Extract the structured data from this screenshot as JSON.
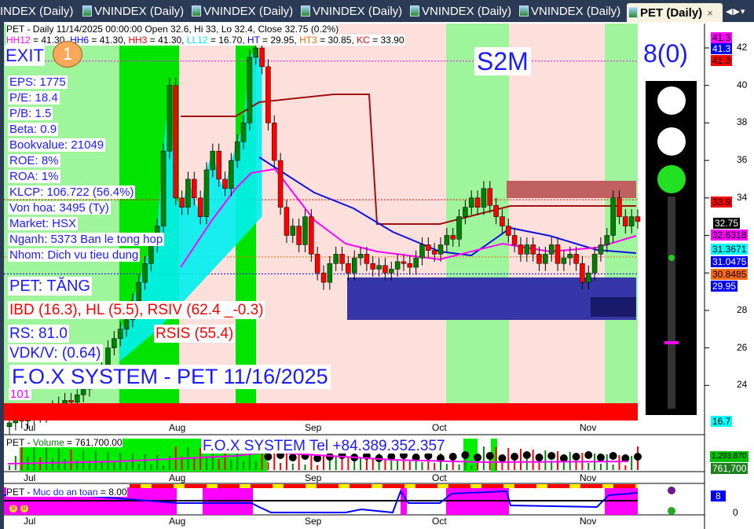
{
  "tabs": [
    {
      "label": "INDEX (Daily)",
      "partial": true
    },
    {
      "label": "VNINDEX (Daily)"
    },
    {
      "label": "VNINDEX (Daily)"
    },
    {
      "label": "VNINDEX (Daily)"
    },
    {
      "label": "VNINDEX (Daily)"
    },
    {
      "label": "VNINDEX (Daily)"
    },
    {
      "label": "PET (Daily)",
      "active": true
    }
  ],
  "tab_close": "×",
  "tab_nav": "◀▶▾",
  "header": {
    "title_line": "PET - Daily 11/14/2025 00:00:00 Open 32.6, Hi 33, Lo 32.4, Close 32.75 (0.2%)",
    "levels": [
      {
        "k": "HH12",
        "v": " = 41.30, ",
        "c": "#ff00ff"
      },
      {
        "k": "HH6",
        "v": " = 41.30, ",
        "c": "#0000ff"
      },
      {
        "k": "HH3",
        "v": " = 41.30, ",
        "c": "#ff0000"
      },
      {
        "k": "LL12",
        "v": " = 16.70, ",
        "c": "#00e5ff"
      },
      {
        "k": "HT",
        "v": "  = 29.95, ",
        "c": "#0000ff"
      },
      {
        "k": "HT3",
        "v": "  = 30.85, ",
        "c": "#ff6a00"
      },
      {
        "k": "KC",
        "v": " = 33.90",
        "c": "#ff0000"
      }
    ]
  },
  "signal": {
    "exit": "EXIT",
    "exit_count": "1",
    "s2m": "S2M",
    "score": "8(0)",
    "pet_trend": "PET: TĂNG",
    "low_label": "101"
  },
  "fundamentals": [
    "EPS: 1775",
    "P/E: 18.4",
    "P/B: 1.5",
    "Beta: 0.9",
    "Bookvalue: 21049",
    "ROE: 8%",
    "ROA: 1%",
    "KLCP: 106.722 (56.4%)",
    "Von hoa: 3495 (Ty)",
    "Market: HSX",
    "Nganh: 5373 Ban le tong hop",
    "Nhom: Dich vu tieu dung"
  ],
  "indicators": {
    "ibd": "IBD (16.3), HL (5.5), RSIV (62.4 _-0.3)",
    "rs": "RS: 81.0",
    "rsis": "RSIS (55.4)",
    "vdk": "VDK/V:  (0.64)"
  },
  "watermark": "F.O.X SYSTEM - PET 11/16/2025",
  "price_axis": {
    "ticks": [
      "42",
      "40",
      "38",
      "36",
      "34",
      "28",
      "26",
      "24"
    ],
    "tags": [
      {
        "v": "41.3",
        "bg": "#ff00ff",
        "fg": "#000"
      },
      {
        "v": "41.3",
        "bg": "#0000ff",
        "fg": "#fff"
      },
      {
        "v": "41.3",
        "bg": "#ff0000",
        "fg": "#000"
      },
      {
        "v": "33.9",
        "bg": "#ff0000",
        "fg": "#000"
      },
      {
        "v": "32.75",
        "bg": "#000",
        "fg": "#fff"
      },
      {
        "v": "32.6318",
        "bg": "#ff00ff",
        "fg": "#000"
      },
      {
        "v": "31.3671",
        "bg": "#00ffff",
        "fg": "#000"
      },
      {
        "v": "31.0475",
        "bg": "#0000ff",
        "fg": "#fff"
      },
      {
        "v": "30.8485",
        "bg": "#ff6a1a",
        "fg": "#000"
      },
      {
        "v": "29.95",
        "bg": "#0000ff",
        "fg": "#fff"
      },
      {
        "v": "16.7",
        "bg": "#00ffff",
        "fg": "#000"
      }
    ]
  },
  "months": [
    "Jul",
    "Aug",
    "Sep",
    "Oct",
    "Nov"
  ],
  "volume_panel": {
    "label_prefix": "PET - ",
    "label": "Volume",
    "value": " = 761,700.00",
    "contact": "F.O.X SYSTEM Tel +84.389.352.357",
    "tags": [
      {
        "v": "1,293,870",
        "bg": "#00c000"
      },
      {
        "v": "761,700",
        "bg": "#208020"
      }
    ]
  },
  "safety_panel": {
    "label_prefix": "PET - ",
    "label": "Muc do an toan",
    "value": " = 8.00",
    "tag": "8",
    "axis_zero": "0",
    "markers": [
      "8",
      "8"
    ]
  },
  "chart_data": {
    "type": "candlestick",
    "symbol": "PET",
    "interval": "Daily",
    "ylim": [
      16.7,
      43
    ],
    "closes": {
      "late_jun_jul": [
        22,
        22.2,
        22.1,
        22.3,
        22.5,
        22.4,
        22.6,
        22.8,
        23,
        23.2,
        23.1,
        23.5,
        23.8,
        24.2,
        24.5,
        25,
        26,
        26.5,
        27,
        27.5,
        28.5,
        29.5,
        30.5,
        31.5,
        32.5,
        36.5,
        40
      ],
      "aug": [
        34,
        33.5,
        35,
        34,
        33,
        35.5,
        36.5,
        35,
        34.5,
        36,
        37,
        38,
        41.5,
        42,
        41,
        38,
        36,
        33.5,
        32,
        32.5,
        31.5,
        33
      ],
      "sep": [
        31,
        30,
        29.5,
        30.5,
        31,
        30.5,
        30,
        30.8,
        31,
        30.5,
        30.2,
        30.4,
        30,
        30.2,
        30.6,
        30.5,
        30.3,
        30.8,
        31.5,
        31.2,
        31
      ],
      "oct": [
        31.5,
        32,
        31.8,
        33,
        33.5,
        34,
        33.5,
        34.5,
        33.6,
        33,
        32.5,
        32,
        31.5,
        31,
        31.5,
        31,
        30.5,
        31,
        31.5,
        30.5,
        30.8,
        31,
        30.5
      ],
      "nov": [
        29.5,
        30,
        31,
        31.5,
        32,
        34,
        33,
        32.5,
        33,
        32.75
      ]
    },
    "last": {
      "open": 32.6,
      "high": 33,
      "low": 32.4,
      "close": 32.75
    },
    "levels": {
      "HH12": 41.3,
      "HH3": 41.3,
      "KC": 33.9,
      "HT3": 30.85,
      "HT": 29.95,
      "LL12": 16.7
    },
    "colors": {
      "up": "#008000",
      "down": "#ff0000"
    }
  }
}
